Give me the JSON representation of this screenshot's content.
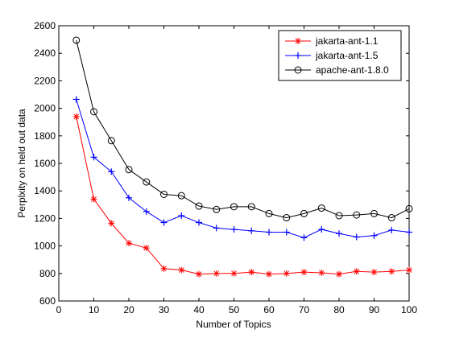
{
  "chart_data": {
    "type": "line",
    "xlabel": "Number of Topics",
    "ylabel": "Perplxity on held out data",
    "xlim": [
      0,
      100
    ],
    "ylim": [
      600,
      2600
    ],
    "x_ticks": [
      0,
      10,
      20,
      30,
      40,
      50,
      60,
      70,
      80,
      90,
      100
    ],
    "y_ticks": [
      600,
      800,
      1000,
      1200,
      1400,
      1600,
      1800,
      2000,
      2200,
      2400,
      2600
    ],
    "grid": false,
    "legend_position": "top-right",
    "x": [
      5,
      10,
      15,
      20,
      25,
      30,
      35,
      40,
      45,
      50,
      55,
      60,
      65,
      70,
      75,
      80,
      85,
      90,
      95,
      100
    ],
    "series": [
      {
        "name": "jakarta-ant-1.1",
        "color": "#ff0000",
        "marker": "asterisk",
        "values": [
          1940,
          1340,
          1165,
          1020,
          985,
          835,
          825,
          795,
          800,
          800,
          810,
          795,
          800,
          810,
          805,
          795,
          815,
          810,
          815,
          825
        ]
      },
      {
        "name": "jakarta-ant-1.5",
        "color": "#0000ff",
        "marker": "plus",
        "values": [
          2065,
          1645,
          1540,
          1350,
          1250,
          1170,
          1220,
          1170,
          1130,
          1120,
          1110,
          1100,
          1100,
          1060,
          1120,
          1090,
          1065,
          1075,
          1115,
          1100
        ]
      },
      {
        "name": "apache-ant-1.8.0",
        "color": "#000000",
        "marker": "circle",
        "values": [
          2495,
          1975,
          1765,
          1555,
          1465,
          1375,
          1365,
          1290,
          1265,
          1285,
          1285,
          1235,
          1205,
          1235,
          1275,
          1220,
          1225,
          1235,
          1205,
          1270
        ]
      }
    ]
  }
}
